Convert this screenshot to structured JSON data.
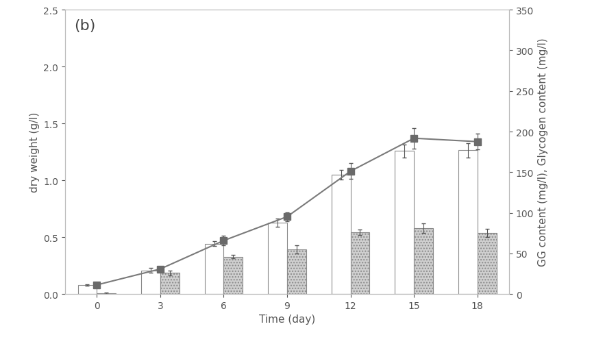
{
  "chart_data": {
    "type": "bar",
    "title": "(b)",
    "x_label": "Time (day)",
    "y_label": "dry weight (g/l)",
    "y2_label": "GG content (mg/l), Glycogen content (mg/l)",
    "categories": [
      "0",
      "3",
      "6",
      "9",
      "12",
      "15",
      "18"
    ],
    "ylim": [
      0,
      2.5
    ],
    "yticks": [
      {
        "value": 0,
        "label": "0.0"
      },
      {
        "value": 0.5,
        "label": "0.5"
      },
      {
        "value": 1,
        "label": "1.0"
      },
      {
        "value": 1.5,
        "label": "1.5"
      },
      {
        "value": 2,
        "label": "2.0"
      },
      {
        "value": 2.5,
        "label": "2.5"
      }
    ],
    "y2lim": [
      0,
      350
    ],
    "y2ticks": [
      0,
      50,
      100,
      150,
      200,
      250,
      300,
      350
    ],
    "grid": false,
    "series": [
      {
        "type": "bar",
        "axis": "y2",
        "color": "#ffffff",
        "values": [
          11,
          29,
          62,
          88,
          147,
          176,
          177
        ],
        "errors": [
          1,
          3,
          3,
          5,
          6,
          8,
          9
        ]
      },
      {
        "type": "bar",
        "axis": "y2",
        "color": "#cfcfcf",
        "values": [
          1,
          26,
          46,
          55,
          76,
          81,
          75
        ],
        "errors": [
          0.5,
          3,
          2,
          5,
          3,
          6,
          5
        ]
      },
      {
        "type": "line",
        "color": "#7a7a7a",
        "marker": "square",
        "values": [
          0.08,
          0.22,
          0.47,
          0.68,
          1.08,
          1.37,
          1.34
        ],
        "errors": [
          0.01,
          0.02,
          0.04,
          0.04,
          0.07,
          0.09,
          0.07
        ]
      }
    ]
  }
}
